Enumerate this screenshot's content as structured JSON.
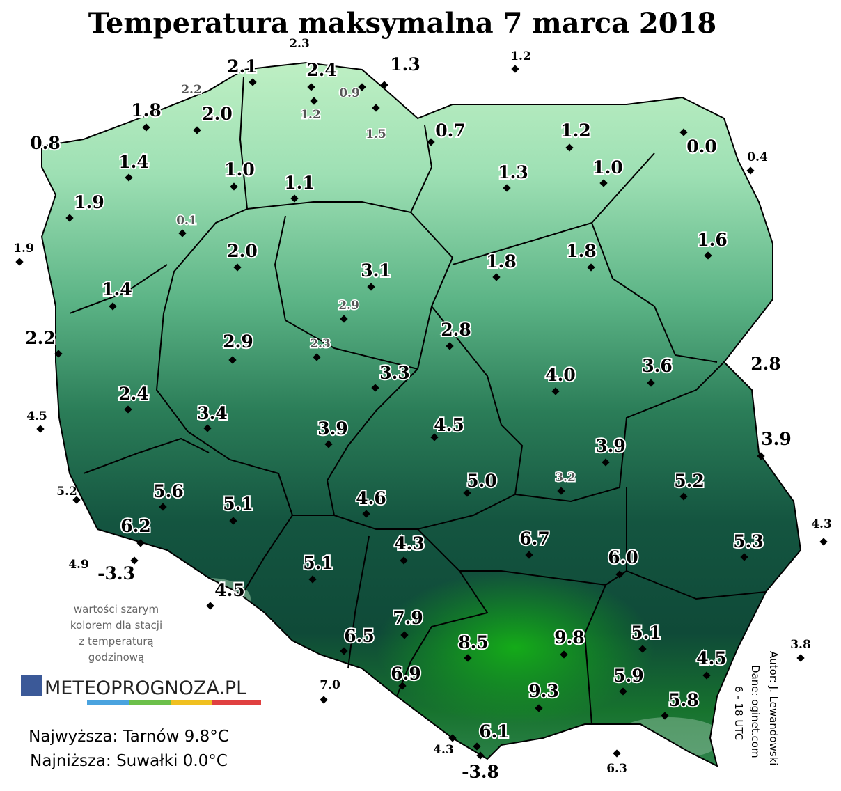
{
  "title": "Temperatura maksymalna 7 marca 2018",
  "stations": [
    "2.3",
    "2.1",
    "2.4",
    "1.3",
    "1.2",
    "2.2",
    "0.9",
    "1.2",
    "1.5",
    "1.8",
    "2.0",
    "0.8",
    "0.7",
    "1.2",
    "0.0",
    "0.4",
    "1.4",
    "1.0",
    "1.1",
    "1.3",
    "1.0",
    "1.9",
    "0.1",
    "1.9",
    "2.0",
    "1.6",
    "1.8",
    "1.8",
    "3.1",
    "1.4",
    "2.9",
    "2.2",
    "2.9",
    "2.3",
    "2.8",
    "2.8",
    "3.6",
    "4.0",
    "3.3",
    "2.4",
    "4.5",
    "3.4",
    "3.9",
    "4.5",
    "3.9",
    "3.9",
    "3.2",
    "5.0",
    "5.2",
    "5.2",
    "5.6",
    "5.1",
    "4.6",
    "4.3",
    "6.2",
    "4.3",
    "6.7",
    "5.3",
    "6.0",
    "4.9",
    "-3.3",
    "5.1",
    "4.5",
    "7.9",
    "5.1",
    "6.5",
    "8.5",
    "9.8",
    "3.8",
    "4.5",
    "6.9",
    "5.9",
    "7.0",
    "9.3",
    "5.8",
    "6.1",
    "4.3",
    "-3.8",
    "6.3"
  ],
  "note": [
    "wartości szarym",
    "kolorem dla stacji",
    "z temperaturą",
    "godzinową"
  ],
  "logo": "METEOPROGNOZA.PL",
  "footer": [
    "Najwyższa: Tarnów 9.8°C",
    "Najniższa: Suwałki 0.0°C"
  ],
  "credits": [
    "Autor: J. Lewandowski",
    "Dane: oginet.com",
    "6 - 18 UTC"
  ]
}
